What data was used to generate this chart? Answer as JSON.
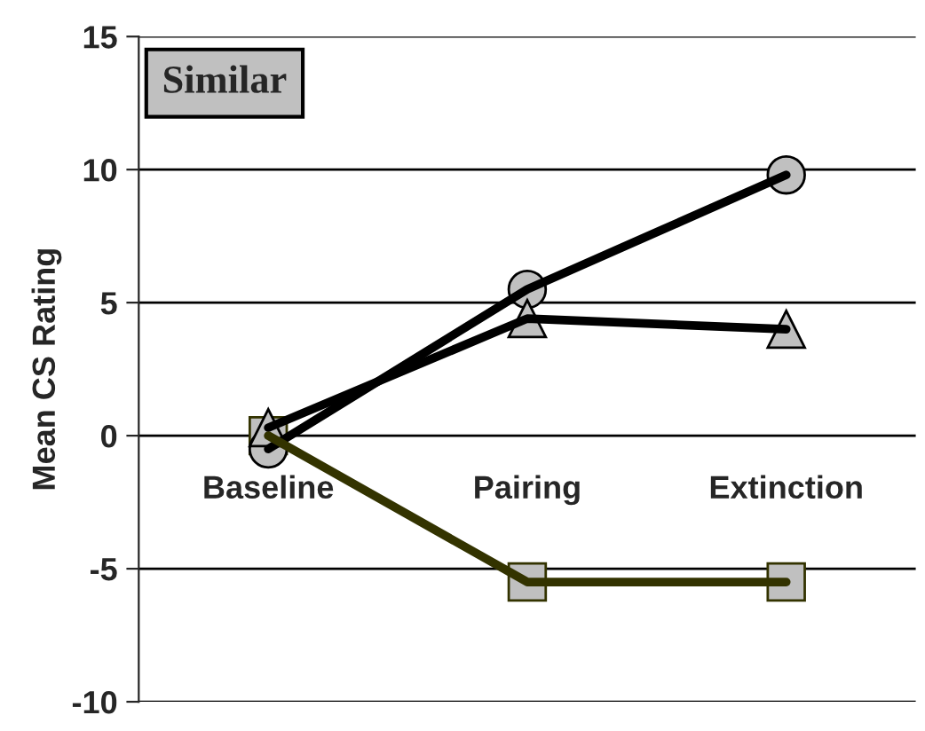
{
  "chart_data": {
    "type": "line",
    "ylabel": "Mean CS Rating",
    "categories": [
      "Baseline",
      "Pairing",
      "Extinction"
    ],
    "series": [
      {
        "color": "#000000",
        "marker": "circle",
        "values": [
          -0.5,
          5.5,
          9.8
        ]
      },
      {
        "color": "#000000",
        "marker": "triangle",
        "values": [
          0.3,
          4.4,
          4.0
        ]
      },
      {
        "color": "#333300",
        "marker": "square",
        "values": [
          0,
          -5.5,
          -5.5
        ]
      }
    ],
    "ylim": [
      -10,
      15
    ],
    "yticks": [
      -10,
      -5,
      0,
      5,
      10,
      15
    ],
    "grid": "y",
    "legend": false,
    "annotations": [
      "Similar"
    ]
  }
}
